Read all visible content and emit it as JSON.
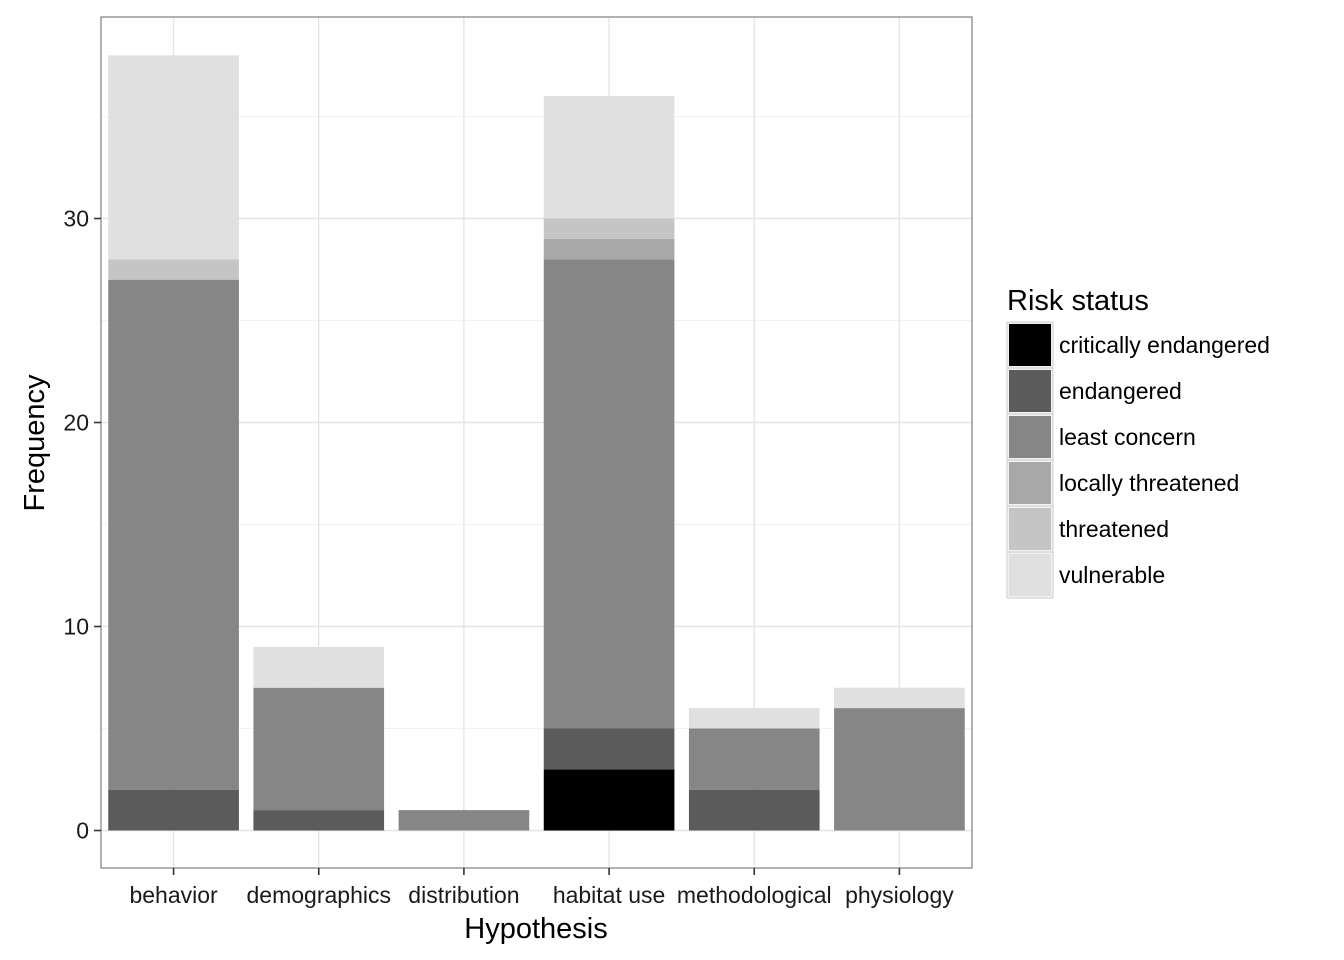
{
  "chart_data": {
    "type": "bar",
    "stacked": true,
    "title": "",
    "xlabel": "Hypothesis",
    "ylabel": "Frequency",
    "ylim": [
      0,
      41.6
    ],
    "yticks": [
      0,
      10,
      20,
      30
    ],
    "grid": true,
    "legend_position": "right",
    "legend_title": "Risk status",
    "categories": [
      "behavior",
      "demographics",
      "distribution",
      "habitat use",
      "methodological",
      "physiology"
    ],
    "series": [
      {
        "name": "critically endangered",
        "color": "#000000",
        "values": [
          0,
          0,
          0,
          3,
          0,
          0
        ]
      },
      {
        "name": "endangered",
        "color": "#5b5b5b",
        "values": [
          2,
          1,
          0,
          2,
          2,
          0
        ]
      },
      {
        "name": "least concern",
        "color": "#868686",
        "values": [
          25,
          6,
          1,
          23,
          3,
          6
        ]
      },
      {
        "name": "locally threatened",
        "color": "#a8a8a8",
        "values": [
          0,
          0,
          0,
          1,
          0,
          0
        ]
      },
      {
        "name": "threatened",
        "color": "#c5c5c5",
        "values": [
          1,
          0,
          0,
          1,
          0,
          0
        ]
      },
      {
        "name": "vulnerable",
        "color": "#e0e0e0",
        "values": [
          10,
          2,
          0,
          6,
          1,
          1
        ]
      }
    ]
  }
}
